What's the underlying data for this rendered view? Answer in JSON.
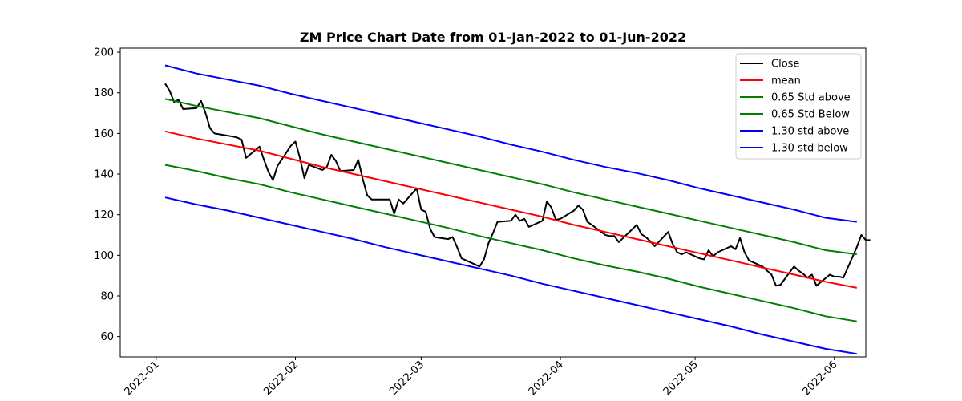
{
  "chart_data": {
    "type": "line",
    "title": "ZM Price Chart Date from 01-Jan-2022 to 01-Jun-2022",
    "xlabel": "",
    "ylabel": "",
    "x_ticks": [
      "2022-01",
      "2022-02",
      "2022-03",
      "2022-04",
      "2022-05",
      "2022-06"
    ],
    "y_ticks": [
      60,
      80,
      100,
      120,
      140,
      160,
      180,
      200
    ],
    "xlim": [
      "2021-12-24",
      "2022-06-08"
    ],
    "ylim": [
      50,
      202
    ],
    "grid": false,
    "legend_position": "top-right",
    "series": [
      {
        "name": "Close",
        "color": "#000000",
        "points": [
          [
            "2022-01-03",
            184.5
          ],
          [
            "2022-01-04",
            181
          ],
          [
            "2022-01-05",
            175.5
          ],
          [
            "2022-01-06",
            176.5
          ],
          [
            "2022-01-07",
            172
          ],
          [
            "2022-01-10",
            172.5
          ],
          [
            "2022-01-11",
            176
          ],
          [
            "2022-01-12",
            170
          ],
          [
            "2022-01-13",
            162.5
          ],
          [
            "2022-01-14",
            160
          ],
          [
            "2022-01-18",
            158.5
          ],
          [
            "2022-01-19",
            158
          ],
          [
            "2022-01-20",
            157
          ],
          [
            "2022-01-21",
            148
          ],
          [
            "2022-01-24",
            153.5
          ],
          [
            "2022-01-25",
            147
          ],
          [
            "2022-01-26",
            141
          ],
          [
            "2022-01-27",
            137
          ],
          [
            "2022-01-28",
            144
          ],
          [
            "2022-01-31",
            154
          ],
          [
            "2022-02-01",
            156
          ],
          [
            "2022-02-02",
            148
          ],
          [
            "2022-02-03",
            138
          ],
          [
            "2022-02-04",
            144.5
          ],
          [
            "2022-02-07",
            142
          ],
          [
            "2022-02-08",
            143.5
          ],
          [
            "2022-02-09",
            149.5
          ],
          [
            "2022-02-10",
            146.5
          ],
          [
            "2022-02-11",
            141.5
          ],
          [
            "2022-02-14",
            142
          ],
          [
            "2022-02-15",
            147
          ],
          [
            "2022-02-16",
            137.5
          ],
          [
            "2022-02-17",
            129.5
          ],
          [
            "2022-02-18",
            127.5
          ],
          [
            "2022-02-22",
            127.5
          ],
          [
            "2022-02-23",
            120.5
          ],
          [
            "2022-02-24",
            127.5
          ],
          [
            "2022-02-25",
            125.5
          ],
          [
            "2022-02-28",
            133
          ],
          [
            "2022-03-01",
            122.5
          ],
          [
            "2022-03-02",
            121.5
          ],
          [
            "2022-03-03",
            113
          ],
          [
            "2022-03-04",
            109
          ],
          [
            "2022-03-07",
            108
          ],
          [
            "2022-03-08",
            109
          ],
          [
            "2022-03-09",
            104
          ],
          [
            "2022-03-10",
            98.5
          ],
          [
            "2022-03-11",
            97.5
          ],
          [
            "2022-03-14",
            94.5
          ],
          [
            "2022-03-15",
            98
          ],
          [
            "2022-03-16",
            106
          ],
          [
            "2022-03-17",
            111
          ],
          [
            "2022-03-18",
            116.5
          ],
          [
            "2022-03-21",
            117
          ],
          [
            "2022-03-22",
            120
          ],
          [
            "2022-03-23",
            117
          ],
          [
            "2022-03-24",
            118
          ],
          [
            "2022-03-25",
            114
          ],
          [
            "2022-03-28",
            117
          ],
          [
            "2022-03-29",
            126.5
          ],
          [
            "2022-03-30",
            123.5
          ],
          [
            "2022-03-31",
            117.5
          ],
          [
            "2022-04-01",
            118
          ],
          [
            "2022-04-04",
            122
          ],
          [
            "2022-04-05",
            124.5
          ],
          [
            "2022-04-06",
            122.5
          ],
          [
            "2022-04-07",
            116.5
          ],
          [
            "2022-04-08",
            115
          ],
          [
            "2022-04-11",
            110
          ],
          [
            "2022-04-12",
            109.5
          ],
          [
            "2022-04-13",
            109.5
          ],
          [
            "2022-04-14",
            106.5
          ],
          [
            "2022-04-18",
            115
          ],
          [
            "2022-04-19",
            110.5
          ],
          [
            "2022-04-20",
            109
          ],
          [
            "2022-04-21",
            107
          ],
          [
            "2022-04-22",
            104.5
          ],
          [
            "2022-04-25",
            111.5
          ],
          [
            "2022-04-26",
            105.5
          ],
          [
            "2022-04-27",
            101.5
          ],
          [
            "2022-04-28",
            100.5
          ],
          [
            "2022-04-29",
            101.5
          ],
          [
            "2022-05-02",
            98.5
          ],
          [
            "2022-05-03",
            98
          ],
          [
            "2022-05-04",
            102.5
          ],
          [
            "2022-05-05",
            99.5
          ],
          [
            "2022-05-06",
            101.5
          ],
          [
            "2022-05-09",
            104.5
          ],
          [
            "2022-05-10",
            103
          ],
          [
            "2022-05-11",
            108.5
          ],
          [
            "2022-05-12",
            101.5
          ],
          [
            "2022-05-13",
            97.5
          ],
          [
            "2022-05-16",
            94.5
          ],
          [
            "2022-05-17",
            92.5
          ],
          [
            "2022-05-18",
            90.5
          ],
          [
            "2022-05-19",
            85
          ],
          [
            "2022-05-20",
            85.5
          ],
          [
            "2022-05-23",
            94.5
          ],
          [
            "2022-05-24",
            92.5
          ],
          [
            "2022-05-25",
            91
          ],
          [
            "2022-05-26",
            89
          ],
          [
            "2022-05-27",
            90.5
          ],
          [
            "2022-05-28",
            85
          ],
          [
            "2022-05-31",
            90.5
          ],
          [
            "2022-06-01",
            89.5
          ],
          [
            "2022-06-02",
            89.5
          ],
          [
            "2022-06-03",
            89
          ],
          [
            "2022-06-04",
            94
          ],
          [
            "2022-06-06",
            104
          ],
          [
            "2022-06-07",
            110
          ],
          [
            "2022-06-08",
            107.5
          ],
          [
            "2022-06-09",
            107.5
          ]
        ]
      },
      {
        "name": "mean",
        "color": "#ff0000",
        "points": [
          [
            "2022-01-03",
            161
          ],
          [
            "2022-01-10",
            157.5
          ],
          [
            "2022-01-17",
            154.5
          ],
          [
            "2022-01-24",
            151.5
          ],
          [
            "2022-01-31",
            147.5
          ],
          [
            "2022-02-07",
            143.5
          ],
          [
            "2022-02-14",
            140
          ],
          [
            "2022-02-21",
            136.5
          ],
          [
            "2022-02-28",
            133
          ],
          [
            "2022-03-07",
            129.5
          ],
          [
            "2022-03-14",
            126
          ],
          [
            "2022-03-21",
            122.5
          ],
          [
            "2022-03-28",
            119
          ],
          [
            "2022-04-04",
            115
          ],
          [
            "2022-04-11",
            111.5
          ],
          [
            "2022-04-18",
            108
          ],
          [
            "2022-04-25",
            104.5
          ],
          [
            "2022-05-02",
            101
          ],
          [
            "2022-05-09",
            97.5
          ],
          [
            "2022-05-16",
            94
          ],
          [
            "2022-05-23",
            90.5
          ],
          [
            "2022-05-30",
            87
          ],
          [
            "2022-06-06",
            84
          ]
        ]
      },
      {
        "name": "0.65 Std above",
        "color": "#008000",
        "points": [
          [
            "2022-01-03",
            177
          ],
          [
            "2022-01-10",
            173.5
          ],
          [
            "2022-01-17",
            170.5
          ],
          [
            "2022-01-24",
            167.5
          ],
          [
            "2022-01-31",
            163.5
          ],
          [
            "2022-02-07",
            159.5
          ],
          [
            "2022-02-14",
            156
          ],
          [
            "2022-02-21",
            152.5
          ],
          [
            "2022-02-28",
            149
          ],
          [
            "2022-03-07",
            145.5
          ],
          [
            "2022-03-14",
            142
          ],
          [
            "2022-03-21",
            138.5
          ],
          [
            "2022-03-28",
            135
          ],
          [
            "2022-04-04",
            131
          ],
          [
            "2022-04-11",
            127.5
          ],
          [
            "2022-04-18",
            124
          ],
          [
            "2022-04-25",
            120.5
          ],
          [
            "2022-05-02",
            117
          ],
          [
            "2022-05-09",
            113.5
          ],
          [
            "2022-05-16",
            110
          ],
          [
            "2022-05-23",
            106.5
          ],
          [
            "2022-05-30",
            102.5
          ],
          [
            "2022-06-06",
            100.5
          ]
        ]
      },
      {
        "name": "0.65 Std Below",
        "color": "#008000",
        "points": [
          [
            "2022-01-03",
            144.5
          ],
          [
            "2022-01-10",
            141.5
          ],
          [
            "2022-01-17",
            138
          ],
          [
            "2022-01-24",
            135
          ],
          [
            "2022-01-31",
            131
          ],
          [
            "2022-02-07",
            127.5
          ],
          [
            "2022-02-14",
            124
          ],
          [
            "2022-02-21",
            120.5
          ],
          [
            "2022-02-28",
            117
          ],
          [
            "2022-03-07",
            113.5
          ],
          [
            "2022-03-14",
            109.5
          ],
          [
            "2022-03-21",
            106
          ],
          [
            "2022-03-28",
            102.5
          ],
          [
            "2022-04-04",
            98.5
          ],
          [
            "2022-04-11",
            95
          ],
          [
            "2022-04-18",
            92
          ],
          [
            "2022-04-25",
            88.5
          ],
          [
            "2022-05-02",
            84.5
          ],
          [
            "2022-05-09",
            81
          ],
          [
            "2022-05-16",
            77.5
          ],
          [
            "2022-05-23",
            74
          ],
          [
            "2022-05-30",
            70
          ],
          [
            "2022-06-06",
            67.5
          ]
        ]
      },
      {
        "name": "1.30 std above",
        "color": "#0000ff",
        "points": [
          [
            "2022-01-03",
            193.5
          ],
          [
            "2022-01-10",
            189.5
          ],
          [
            "2022-01-17",
            186.5
          ],
          [
            "2022-01-24",
            183.5
          ],
          [
            "2022-01-31",
            179.5
          ],
          [
            "2022-02-07",
            176
          ],
          [
            "2022-02-14",
            172.5
          ],
          [
            "2022-02-21",
            169
          ],
          [
            "2022-02-28",
            165.5
          ],
          [
            "2022-03-07",
            162
          ],
          [
            "2022-03-14",
            158.5
          ],
          [
            "2022-03-21",
            154.5
          ],
          [
            "2022-03-28",
            151
          ],
          [
            "2022-04-04",
            147
          ],
          [
            "2022-04-11",
            143.5
          ],
          [
            "2022-04-18",
            140.5
          ],
          [
            "2022-04-25",
            137
          ],
          [
            "2022-05-02",
            133
          ],
          [
            "2022-05-09",
            129.5
          ],
          [
            "2022-05-16",
            126
          ],
          [
            "2022-05-23",
            122.5
          ],
          [
            "2022-05-30",
            118.5
          ],
          [
            "2022-06-06",
            116.5
          ]
        ]
      },
      {
        "name": "1.30 std below",
        "color": "#0000ff",
        "points": [
          [
            "2022-01-03",
            128.5
          ],
          [
            "2022-01-10",
            125
          ],
          [
            "2022-01-17",
            122
          ],
          [
            "2022-01-24",
            118.5
          ],
          [
            "2022-01-31",
            115
          ],
          [
            "2022-02-07",
            111.5
          ],
          [
            "2022-02-14",
            108
          ],
          [
            "2022-02-21",
            104
          ],
          [
            "2022-02-28",
            100.5
          ],
          [
            "2022-03-07",
            97
          ],
          [
            "2022-03-14",
            93.5
          ],
          [
            "2022-03-21",
            90
          ],
          [
            "2022-03-28",
            86
          ],
          [
            "2022-04-04",
            82.5
          ],
          [
            "2022-04-11",
            79
          ],
          [
            "2022-04-18",
            75.5
          ],
          [
            "2022-04-25",
            72
          ],
          [
            "2022-05-02",
            68.5
          ],
          [
            "2022-05-09",
            65
          ],
          [
            "2022-05-16",
            61
          ],
          [
            "2022-05-23",
            57.5
          ],
          [
            "2022-05-30",
            54
          ],
          [
            "2022-06-06",
            51.5
          ]
        ]
      }
    ]
  }
}
